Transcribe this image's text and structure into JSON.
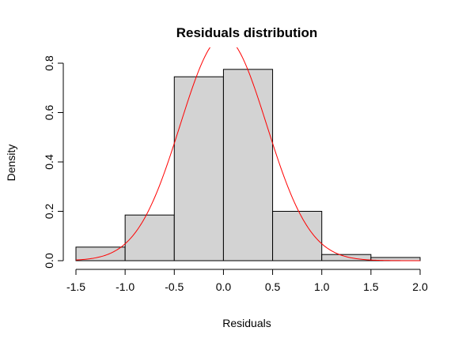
{
  "chart_data": {
    "type": "bar",
    "title": "Residuals distribution",
    "xlabel": "Residuals",
    "ylabel": "Density",
    "xlim": [
      -1.5,
      2.0
    ],
    "ylim": [
      0,
      0.8
    ],
    "x_ticks": [
      -1.5,
      -1.0,
      -0.5,
      0.0,
      0.5,
      1.0,
      1.5,
      2.0
    ],
    "y_ticks": [
      0.0,
      0.2,
      0.4,
      0.6,
      0.8
    ],
    "bins": [
      {
        "from": -1.5,
        "to": -1.0,
        "density": 0.055
      },
      {
        "from": -1.0,
        "to": -0.5,
        "density": 0.185
      },
      {
        "from": -0.5,
        "to": 0.0,
        "density": 0.745
      },
      {
        "from": 0.0,
        "to": 0.5,
        "density": 0.775
      },
      {
        "from": 0.5,
        "to": 1.0,
        "density": 0.2
      },
      {
        "from": 1.0,
        "to": 1.5,
        "density": 0.025
      },
      {
        "from": 1.5,
        "to": 2.0,
        "density": 0.013
      }
    ],
    "curve": {
      "kind": "normal-density",
      "mean": 0.0,
      "sd": 0.44,
      "color": "#ff0000"
    },
    "bar_fill": "#d3d3d3",
    "grid": false
  }
}
